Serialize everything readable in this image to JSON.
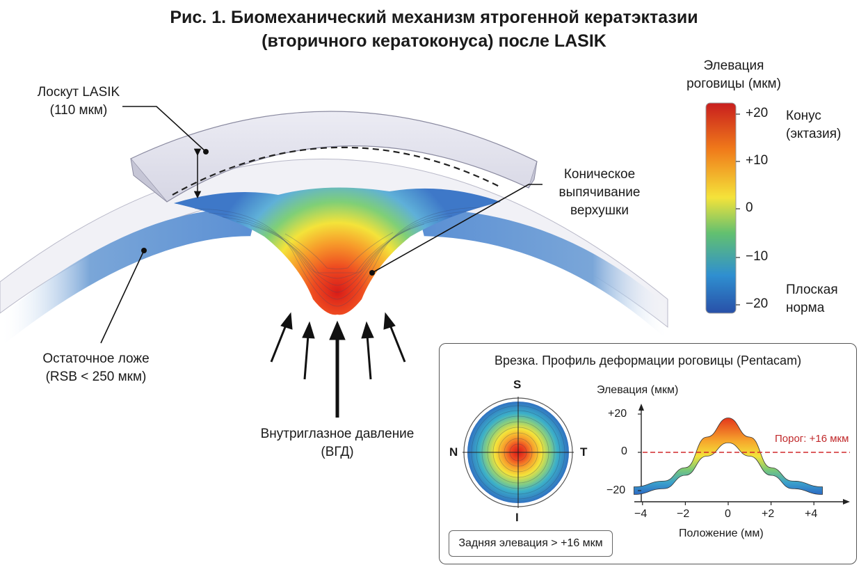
{
  "title": {
    "line1": "Рис. 1. Биомеханический механизм ятрогенной кератэктазии",
    "line2": "(вторичного кератоконуса) после LASIK"
  },
  "labels": {
    "flap_line1": "Лоскут LASIK",
    "flap_line2": "(110 мкм)",
    "bulge_line1": "Коническое",
    "bulge_line2": "выпячивание",
    "bulge_line3": "верхушки",
    "bed_line1": "Остаточное ложе",
    "bed_line2": "(RSB < 250 мкм)",
    "iop_line1": "Внутриглазное давление",
    "iop_line2": "(ВГД)"
  },
  "colorbar": {
    "title_line1": "Элевация",
    "title_line2": "роговицы (мкм)",
    "ticks": [
      "+20",
      "+10",
      "0",
      "−10",
      "−20"
    ],
    "top_note_line1": "Конус",
    "top_note_line2": "(эктазия)",
    "bottom_note_line1": "Плоская",
    "bottom_note_line2": "норма",
    "colors": [
      "#c81e1e",
      "#f07a1a",
      "#f4e33a",
      "#62c070",
      "#2f6fc0",
      "#2850a8"
    ]
  },
  "inset": {
    "title": "Врезка. Профиль деформации роговицы (Pentacam)",
    "map_labels": {
      "S": "S",
      "N": "N",
      "T": "T",
      "I": "I"
    },
    "note": "Задняя элевация > +16 мкм",
    "chart": {
      "ylabel": "Элевация (мкм)",
      "xlabel": "Положение (мм)",
      "threshold_label": "Порог: +16 мкм",
      "y_ticks": [
        "+20",
        "0",
        "−20"
      ],
      "x_ticks": [
        "−4",
        "−2",
        "0",
        "+2",
        "+4"
      ]
    }
  },
  "chart_data": {
    "type": "area",
    "x": [
      -4.4,
      -3,
      -2,
      -1,
      0,
      1,
      2,
      3,
      4.4
    ],
    "series": [
      {
        "values": [
          -18,
          -15,
          -8,
          8,
          18,
          8,
          -8,
          -15,
          -18
        ]
      },
      {
        "values": [
          -22,
          -19,
          -12,
          -2,
          5,
          -2,
          -12,
          -19,
          -22
        ]
      }
    ],
    "threshold": 0,
    "xlim": [
      -4.5,
      5.3
    ],
    "ylim": [
      -25,
      22
    ]
  }
}
